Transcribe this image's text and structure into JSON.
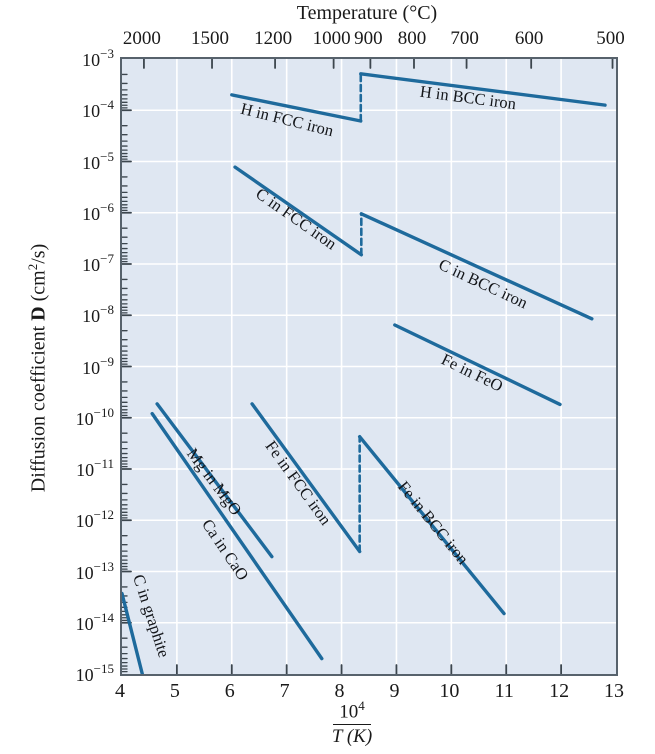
{
  "colors": {
    "line": "#1e6a9c",
    "plot_background": "#dfe7f2",
    "grid": "#ffffff",
    "axis": "#57626c",
    "tick": "#3c464e",
    "text": "#1a1a1a"
  },
  "chart_data": {
    "type": "line",
    "title": "",
    "top_axis": {
      "title": "Temperature (°C)",
      "tick_temps_c": [
        2000,
        1500,
        1200,
        1000,
        900,
        800,
        700,
        600,
        500
      ]
    },
    "x_axis": {
      "label_numerator_base": "10",
      "label_numerator_exp": "4",
      "label_denominator": "T (K)",
      "min": 4,
      "max": 13,
      "ticks": [
        4,
        5,
        6,
        7,
        8,
        9,
        10,
        11,
        12,
        13
      ]
    },
    "y_axis": {
      "label_pre": "Diffusion coefficient ",
      "label_bold": "D",
      "label_unit_pre": " (cm",
      "label_unit_sup": "2",
      "label_unit_post": "/s)",
      "scale": "log",
      "exponents": [
        -3,
        -4,
        -5,
        -6,
        -7,
        -8,
        -9,
        -10,
        -11,
        -12,
        -13,
        -14,
        -15
      ]
    },
    "grid": {
      "vertical_x": [
        5,
        6,
        7,
        8,
        9,
        10,
        11,
        12
      ],
      "horizontal_exponents": [
        -4,
        -5,
        -6,
        -7,
        -8,
        -9,
        -10,
        -11,
        -12,
        -13,
        -14
      ]
    },
    "series": [
      {
        "name": "H in FCC iron",
        "points": [
          [
            6.0,
            -3.7
          ],
          [
            8.35,
            -4.21
          ]
        ]
      },
      {
        "name": "H in BCC iron",
        "points": [
          [
            8.35,
            -3.29
          ],
          [
            12.8,
            -3.9
          ]
        ]
      },
      {
        "name": "C in FCC iron",
        "points": [
          [
            6.06,
            -5.11
          ],
          [
            8.36,
            -6.82
          ]
        ]
      },
      {
        "name": "C in BCC iron",
        "points": [
          [
            8.36,
            -6.02
          ],
          [
            12.56,
            -8.07
          ]
        ]
      },
      {
        "name": "Fe in FeO",
        "points": [
          [
            8.97,
            -8.19
          ],
          [
            11.98,
            -9.74
          ]
        ]
      },
      {
        "name": "Fe in FCC iron",
        "points": [
          [
            6.37,
            -9.73
          ],
          [
            8.33,
            -12.61
          ]
        ]
      },
      {
        "name": "Fe in BCC iron",
        "points": [
          [
            8.33,
            -10.37
          ],
          [
            10.96,
            -13.82
          ]
        ]
      },
      {
        "name": "Mg in MgO",
        "points": [
          [
            4.64,
            -9.73
          ],
          [
            6.73,
            -12.71
          ]
        ]
      },
      {
        "name": "Ca in CaO",
        "points": [
          [
            4.55,
            -9.92
          ],
          [
            7.64,
            -14.7
          ]
        ]
      },
      {
        "name": "C in graphite",
        "points": [
          [
            4.0,
            -13.43
          ],
          [
            4.37,
            -15.0
          ]
        ]
      }
    ],
    "phase_transition_connectors": [
      {
        "x": 8.35,
        "log_d_from": -4.21,
        "log_d_to": -3.29
      },
      {
        "x": 8.36,
        "log_d_from": -6.82,
        "log_d_to": -6.02
      },
      {
        "x": 8.33,
        "log_d_from": -12.61,
        "log_d_to": -10.37
      }
    ],
    "series_labels": [
      {
        "text": "H in FCC iron",
        "x": 7.04,
        "log_d": -4.22,
        "rot": 14
      },
      {
        "text": "H in BCC iron",
        "x": 10.34,
        "log_d": -3.8,
        "rot": 7.5
      },
      {
        "text": "C in FCC iron",
        "x": 7.21,
        "log_d": -6.16,
        "rot": 35
      },
      {
        "text": "C in BCC iron",
        "x": 10.61,
        "log_d": -7.43,
        "rot": 25
      },
      {
        "text": "Fe in FeO",
        "x": 10.41,
        "log_d": -9.16,
        "rot": 26
      },
      {
        "text": "Fe in FCC iron",
        "x": 7.24,
        "log_d": -11.32,
        "rot": 54
      },
      {
        "text": "Fe in BCC iron",
        "x": 9.7,
        "log_d": -12.1,
        "rot": 51
      },
      {
        "text": "Mg in MgO",
        "x": 5.72,
        "log_d": -11.3,
        "rot": 53
      },
      {
        "text": "Ca in CaO",
        "x": 5.92,
        "log_d": -12.62,
        "rot": 56
      },
      {
        "text": "C in graphite",
        "x": 4.56,
        "log_d": -13.9,
        "rot": 72
      }
    ]
  }
}
